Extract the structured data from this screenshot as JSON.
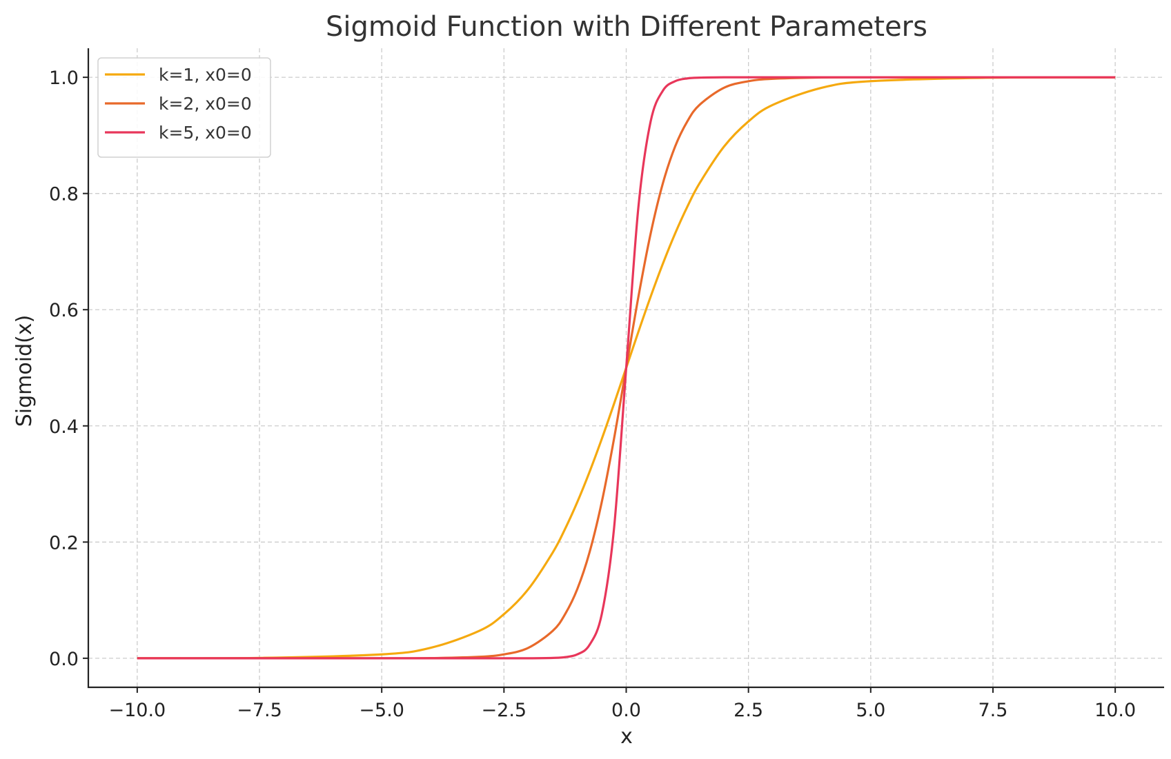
{
  "chart_data": {
    "type": "line",
    "title": "Sigmoid Function with Different Parameters",
    "xlabel": "x",
    "ylabel": "Sigmoid(x)",
    "xlim": [
      -11,
      11
    ],
    "ylim": [
      -0.05,
      1.05
    ],
    "grid": true,
    "legend_position": "top-left",
    "x_ticks": [
      -10,
      -7.5,
      -5,
      -2.5,
      0,
      2.5,
      5,
      7.5,
      10
    ],
    "x_tick_labels": [
      "−10.0",
      "−7.5",
      "−5.0",
      "−2.5",
      "0.0",
      "2.5",
      "5.0",
      "7.5",
      "10.0"
    ],
    "y_ticks": [
      0,
      0.2,
      0.4,
      0.6,
      0.8,
      1.0
    ],
    "y_tick_labels": [
      "0.0",
      "0.2",
      "0.4",
      "0.6",
      "0.8",
      "1.0"
    ],
    "x": [
      -10,
      -7.5,
      -5,
      -4,
      -3,
      -2.5,
      -2,
      -1.5,
      -1.25,
      -1,
      -0.75,
      -0.5,
      -0.25,
      0,
      0.25,
      0.5,
      0.75,
      1,
      1.25,
      1.5,
      2,
      2.5,
      3,
      4,
      5,
      7.5,
      10
    ],
    "series": [
      {
        "name": "k=1, x0=0",
        "color": "#f5a90f",
        "values": [
          0.0,
          0.0006,
          0.0067,
          0.018,
          0.0474,
          0.0759,
          0.1192,
          0.1824,
          0.2227,
          0.2689,
          0.3208,
          0.3775,
          0.4378,
          0.5,
          0.5622,
          0.6225,
          0.6792,
          0.7311,
          0.7773,
          0.8176,
          0.8808,
          0.9241,
          0.9526,
          0.982,
          0.9933,
          0.9994,
          1.0
        ]
      },
      {
        "name": "k=2, x0=0",
        "color": "#e8692a",
        "values": [
          0.0,
          0.0,
          0.0,
          0.0003,
          0.0025,
          0.0067,
          0.018,
          0.0474,
          0.0759,
          0.1192,
          0.1824,
          0.2689,
          0.3775,
          0.5,
          0.6225,
          0.7311,
          0.8176,
          0.8808,
          0.9241,
          0.9526,
          0.982,
          0.9933,
          0.9975,
          0.9997,
          1.0,
          1.0,
          1.0
        ]
      },
      {
        "name": "k=5, x0=0",
        "color": "#e8365a",
        "values": [
          0.0,
          0.0,
          0.0,
          0.0,
          0.0,
          0.0,
          0.0,
          0.0006,
          0.0019,
          0.0067,
          0.023,
          0.0759,
          0.2227,
          0.5,
          0.7773,
          0.9241,
          0.977,
          0.9933,
          0.9981,
          0.9994,
          1.0,
          1.0,
          1.0,
          1.0,
          1.0,
          1.0,
          1.0
        ]
      }
    ]
  }
}
